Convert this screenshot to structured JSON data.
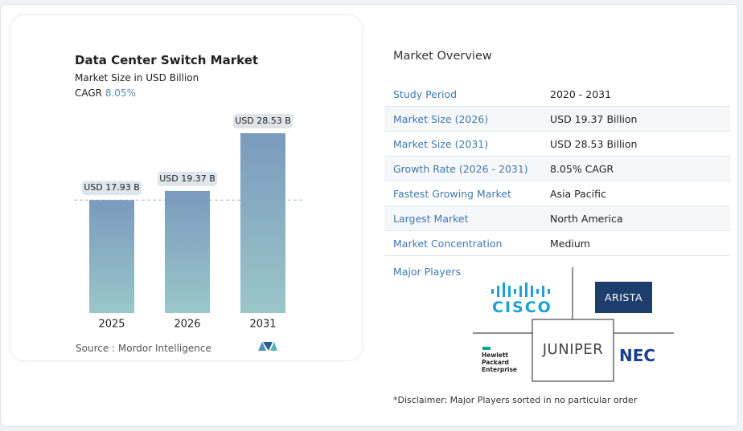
{
  "chart_data": {
    "type": "bar",
    "title": "Data Center Switch Market",
    "subtitle": "Market Size in USD Billion",
    "cagr_label": "CAGR",
    "cagr": "8.05%",
    "categories": [
      "2025",
      "2026",
      "2031"
    ],
    "values": [
      17.93,
      19.37,
      28.53
    ],
    "value_labels": [
      "USD 17.93 B",
      "USD 19.37 B",
      "USD 28.53 B"
    ],
    "color": [
      "#7a9bbd",
      "#9bc6c9"
    ],
    "source": "Source :  Mordor Intelligence"
  },
  "overview": {
    "title": "Market Overview",
    "rows": [
      [
        "Study Period",
        "2020 - 2031"
      ],
      [
        "Market Size (2026)",
        "USD 19.37 Billion"
      ],
      [
        "Market Size (2031)",
        "USD 28.53 Billion"
      ],
      [
        "Growth Rate (2026 - 2031)",
        "8.05% CAGR"
      ],
      [
        "Fastest Growing Market",
        "Asia Pacific"
      ],
      [
        "Largest Market",
        "North America"
      ],
      [
        "Market Concentration",
        "Medium"
      ]
    ],
    "major_players_label": "Major Players",
    "players": [
      "CISCO",
      "ARISTA",
      "Hewlett Packard Enterprise",
      "JUNIPER",
      "NEC"
    ],
    "disclaimer": "*Disclaimer: Major Players sorted in no particular order"
  }
}
